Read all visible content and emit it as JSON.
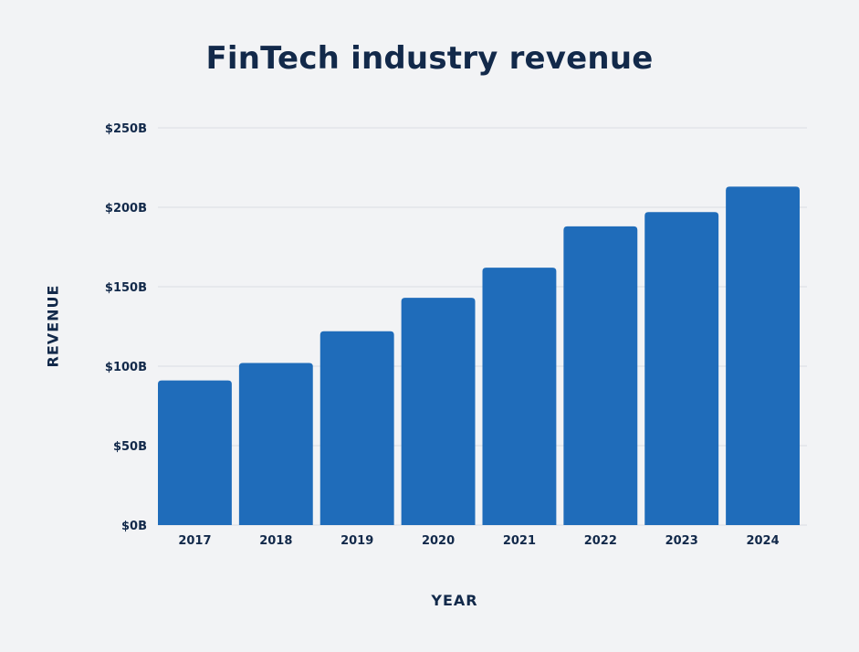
{
  "chart_data": {
    "type": "bar",
    "title": "FinTech industry revenue",
    "xlabel": "YEAR",
    "ylabel": "REVENUE",
    "categories": [
      "2017",
      "2018",
      "2019",
      "2020",
      "2021",
      "2022",
      "2023",
      "2024"
    ],
    "values": [
      91,
      102,
      122,
      143,
      162,
      188,
      197,
      213
    ],
    "unit": "$B",
    "ylim": [
      0,
      250
    ],
    "yticks": [
      0,
      50,
      100,
      150,
      200,
      250
    ],
    "ytick_labels": [
      "$0B",
      "$50B",
      "$100B",
      "$150B",
      "$200B",
      "$250B"
    ],
    "grid": true,
    "bar_color": "#1f6cba",
    "text_color": "#12294a",
    "background": "#f2f3f5"
  }
}
